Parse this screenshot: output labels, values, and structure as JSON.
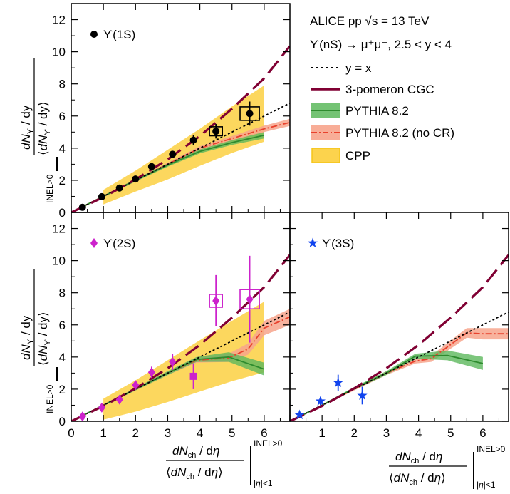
{
  "legend": {
    "collab": "ALICE pp",
    "sqrt_s": "√s = 13 TeV",
    "decay": "ϒ(nS) → μ⁺μ⁻, 2.5 < y < 4",
    "yx": "y = x",
    "cgc": "3-pomeron CGC",
    "pythia": "PYTHIA 8.2",
    "pythia_nocr": "PYTHIA 8.2 (no CR)",
    "cpp": "CPP"
  },
  "colors": {
    "cgc": "#800033",
    "pythia_line": "#2e8b2e",
    "pythia_band": "#5cb85c",
    "nocr_line": "#e8412c",
    "nocr_band": "#f7a48c",
    "cpp_band": "#fcd34d",
    "cpp_edge": "#f5c518",
    "y1s": "#000000",
    "y2s": "#cc22cc",
    "y3s": "#1144ee"
  },
  "axes": {
    "ylabel_top": "dNϒ / dy / ⟨dNϒ / dy⟩ |INEL>0",
    "ylabel_bottom": "dNϒ / dy / ⟨dNϒ / dy⟩ |INEL>0",
    "xlabel_left": "dNch / dη / ⟨dNch / dη⟩ ||η|<1 INEL>0",
    "xlabel_right": "dNch / dη / ⟨dNch / dη⟩ ||η|<1 INEL>0",
    "xlim": [
      0,
      6.8
    ],
    "ylim": [
      0,
      13
    ],
    "xticks": [
      0,
      1,
      2,
      3,
      4,
      5,
      6
    ],
    "yticks": [
      0,
      2,
      4,
      6,
      8,
      10,
      12
    ]
  },
  "chart_data": [
    {
      "type": "scatter",
      "panel": "top-left",
      "series": [
        {
          "name": "ϒ(1S)",
          "marker": "circle",
          "x": [
            0.35,
            0.95,
            1.5,
            2.0,
            2.5,
            3.15,
            3.8,
            4.5,
            5.55
          ],
          "y": [
            0.32,
            0.98,
            1.52,
            2.08,
            2.85,
            3.62,
            4.5,
            5.05,
            6.15
          ],
          "yerr": [
            0.05,
            0.06,
            0.08,
            0.1,
            0.13,
            0.18,
            0.3,
            0.45,
            0.75
          ],
          "syst_half_width": [
            0.05,
            0.05,
            0.05,
            0.05,
            0.05,
            0.05,
            0.05,
            0.2,
            0.3
          ],
          "syst_half_height": [
            0.03,
            0.04,
            0.06,
            0.08,
            0.1,
            0.12,
            0.18,
            0.28,
            0.42
          ]
        }
      ]
    },
    {
      "type": "scatter",
      "panel": "bottom-left",
      "series": [
        {
          "name": "ϒ(2S)",
          "marker": "diamond",
          "x": [
            0.35,
            0.95,
            1.5,
            2.0,
            2.5,
            3.15,
            3.8,
            4.5,
            5.55
          ],
          "y": [
            0.3,
            0.85,
            1.35,
            2.25,
            3.05,
            3.7,
            2.8,
            7.5,
            7.6
          ],
          "yerr": [
            0.1,
            0.15,
            0.2,
            0.25,
            0.35,
            0.5,
            0.8,
            1.6,
            2.7
          ],
          "syst_half_width": [
            0.05,
            0.05,
            0.05,
            0.05,
            0.05,
            0.05,
            0.05,
            0.2,
            0.3
          ],
          "syst_half_height": [
            0.05,
            0.05,
            0.08,
            0.1,
            0.12,
            0.15,
            0.3,
            0.4,
            0.6
          ]
        }
      ]
    },
    {
      "type": "scatter",
      "panel": "bottom-right",
      "series": [
        {
          "name": "ϒ(3S)",
          "marker": "star",
          "x": [
            0.3,
            0.95,
            1.5,
            2.25
          ],
          "y": [
            0.4,
            1.25,
            2.4,
            1.6
          ],
          "yerr": [
            0.12,
            0.25,
            0.5,
            0.55
          ]
        }
      ]
    },
    {
      "type": "line",
      "name": "3-pomeron CGC",
      "x": [
        0,
        1,
        2,
        3,
        4,
        5,
        6,
        6.8
      ],
      "y": [
        0,
        0.95,
        2.05,
        3.3,
        4.75,
        6.45,
        8.35,
        10.35
      ]
    },
    {
      "type": "line",
      "name": "y = x",
      "x": [
        0,
        6.8
      ],
      "y": [
        0,
        6.8
      ]
    },
    {
      "type": "area",
      "name": "CPP",
      "x": [
        1,
        2,
        3,
        4,
        5,
        6
      ],
      "low": [
        0.5,
        1.3,
        2.05,
        2.9,
        3.7,
        4.4
      ],
      "high": [
        1.4,
        2.6,
        3.9,
        5.2,
        6.6,
        7.9
      ],
      "x_2s": [
        1,
        2,
        3,
        4,
        5,
        6
      ],
      "low_2s": [
        0.1,
        0.6,
        1.2,
        1.85,
        2.5,
        3.05
      ],
      "high_2s": [
        1.4,
        2.55,
        3.8,
        5.05,
        6.25,
        7.45
      ]
    },
    {
      "type": "area",
      "name": "PYTHIA 8.2",
      "panel_1s": {
        "x": [
          0,
          1,
          2,
          3,
          4,
          5,
          6
        ],
        "y": [
          0,
          1.0,
          2.0,
          2.95,
          3.8,
          4.35,
          4.8
        ],
        "err": [
          0.05,
          0.05,
          0.08,
          0.1,
          0.12,
          0.15,
          0.2
        ]
      },
      "panel_2s": {
        "x": [
          0,
          1,
          2,
          3,
          3.9,
          4.9,
          6
        ],
        "y": [
          0,
          1.0,
          2.0,
          3.0,
          3.85,
          4.0,
          3.25
        ],
        "err": [
          0.05,
          0.05,
          0.08,
          0.12,
          0.15,
          0.3,
          0.4
        ]
      },
      "panel_3s": {
        "x": [
          0,
          1,
          2,
          3,
          3.9,
          4.9,
          6
        ],
        "y": [
          0,
          1.0,
          2.05,
          3.0,
          4.05,
          4.1,
          3.6
        ],
        "err": [
          0.05,
          0.05,
          0.08,
          0.12,
          0.15,
          0.3,
          0.4
        ]
      }
    },
    {
      "type": "area",
      "name": "PYTHIA 8.2 (no CR)",
      "panel_1s": {
        "x": [
          0,
          1,
          2,
          3,
          4,
          5,
          6,
          6.8
        ],
        "y": [
          0,
          1.0,
          2.0,
          3.0,
          4.0,
          4.6,
          5.2,
          5.6
        ],
        "err": [
          0.05,
          0.05,
          0.08,
          0.1,
          0.12,
          0.15,
          0.2,
          0.22
        ]
      },
      "panel_2s": {
        "x": [
          0,
          1,
          2,
          3,
          3.9,
          4.9,
          5.5,
          6,
          6.8
        ],
        "y": [
          0,
          1.0,
          2.0,
          3.0,
          3.8,
          3.95,
          4.5,
          5.8,
          6.5
        ],
        "err": [
          0.05,
          0.05,
          0.08,
          0.12,
          0.15,
          0.25,
          0.35,
          0.45,
          0.5
        ]
      },
      "panel_3s": {
        "x": [
          0,
          1,
          2,
          3,
          3.9,
          4.4,
          5.5,
          6,
          6.8
        ],
        "y": [
          0,
          1.0,
          2.0,
          3.0,
          3.75,
          3.9,
          5.5,
          5.45,
          5.45
        ],
        "err": [
          0.05,
          0.05,
          0.08,
          0.12,
          0.15,
          0.2,
          0.3,
          0.35,
          0.35
        ]
      }
    }
  ]
}
